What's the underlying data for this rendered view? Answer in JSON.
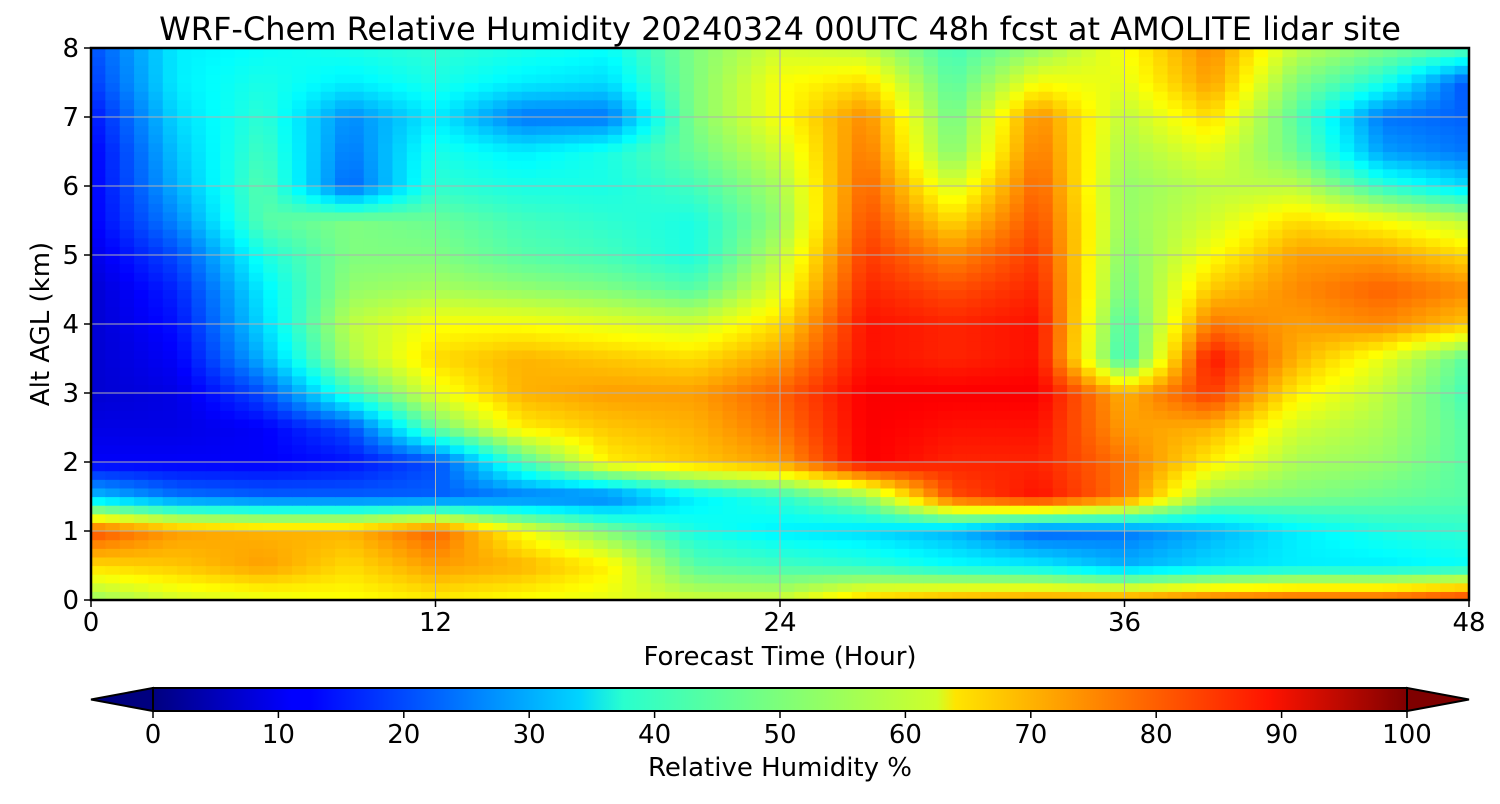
{
  "chart_data": {
    "type": "heatmap",
    "title": "WRF-Chem Relative Humidity 20240324 00UTC 48h fcst at AMOLITE lidar site",
    "xlabel": "Forecast Time (Hour)",
    "ylabel": "Alt AGL (km)",
    "xlim": [
      0,
      48
    ],
    "ylim": [
      0,
      8
    ],
    "xticks": [
      "0",
      "12",
      "24",
      "36",
      "48"
    ],
    "yticks": [
      "0",
      "1",
      "2",
      "3",
      "4",
      "5",
      "6",
      "7",
      "8"
    ],
    "grid": true,
    "x": [
      0,
      3,
      6,
      9,
      12,
      15,
      18,
      21,
      24,
      27,
      30,
      33,
      36,
      39,
      42,
      45,
      48
    ],
    "y": [
      0,
      0.5,
      1,
      1.5,
      2,
      2.5,
      3,
      3.5,
      4,
      4.5,
      5,
      5.5,
      6,
      6.5,
      7,
      7.5,
      8
    ],
    "z": [
      [
        52,
        58,
        60,
        62,
        64,
        62,
        60,
        58,
        58,
        68,
        72,
        74,
        74,
        78,
        80,
        80,
        84
      ],
      [
        66,
        68,
        72,
        66,
        72,
        70,
        64,
        46,
        44,
        42,
        38,
        36,
        30,
        34,
        36,
        36,
        38
      ],
      [
        80,
        72,
        70,
        70,
        78,
        62,
        50,
        40,
        36,
        34,
        30,
        22,
        24,
        30,
        36,
        40,
        42
      ],
      [
        32,
        24,
        22,
        22,
        22,
        24,
        24,
        36,
        42,
        52,
        80,
        86,
        76,
        52,
        50,
        48,
        46
      ],
      [
        12,
        12,
        12,
        14,
        20,
        44,
        64,
        68,
        72,
        88,
        84,
        84,
        76,
        64,
        54,
        52,
        46
      ],
      [
        10,
        10,
        12,
        20,
        48,
        64,
        68,
        70,
        76,
        88,
        86,
        86,
        72,
        70,
        58,
        54,
        46
      ],
      [
        8,
        10,
        20,
        42,
        60,
        70,
        72,
        72,
        78,
        88,
        88,
        88,
        70,
        82,
        64,
        56,
        44
      ],
      [
        8,
        12,
        30,
        54,
        66,
        70,
        68,
        66,
        72,
        86,
        84,
        86,
        42,
        86,
        70,
        60,
        46
      ],
      [
        8,
        14,
        34,
        56,
        62,
        62,
        60,
        58,
        66,
        86,
        84,
        86,
        44,
        76,
        72,
        74,
        68
      ],
      [
        8,
        16,
        36,
        52,
        54,
        52,
        50,
        46,
        60,
        84,
        80,
        84,
        48,
        68,
        74,
        78,
        74
      ],
      [
        10,
        20,
        40,
        50,
        50,
        46,
        44,
        40,
        56,
        82,
        74,
        82,
        50,
        62,
        72,
        72,
        66
      ],
      [
        12,
        26,
        46,
        50,
        48,
        44,
        42,
        40,
        52,
        80,
        66,
        80,
        52,
        58,
        66,
        62,
        56
      ],
      [
        12,
        30,
        46,
        22,
        42,
        40,
        40,
        44,
        54,
        78,
        58,
        78,
        52,
        56,
        56,
        42,
        34
      ],
      [
        12,
        32,
        44,
        24,
        40,
        36,
        40,
        48,
        58,
        76,
        50,
        76,
        54,
        60,
        48,
        28,
        24
      ],
      [
        14,
        34,
        42,
        26,
        36,
        24,
        24,
        50,
        62,
        74,
        48,
        74,
        56,
        66,
        46,
        24,
        22
      ],
      [
        18,
        36,
        40,
        36,
        40,
        36,
        34,
        50,
        62,
        66,
        46,
        62,
        60,
        72,
        50,
        40,
        20
      ],
      [
        20,
        36,
        38,
        40,
        42,
        40,
        38,
        50,
        58,
        56,
        44,
        52,
        62,
        74,
        56,
        50,
        46
      ]
    ],
    "colorbar": {
      "label": "Relative Humidity %",
      "min": 0,
      "max": 100,
      "ticks": [
        "0",
        "10",
        "20",
        "30",
        "40",
        "50",
        "60",
        "70",
        "80",
        "90",
        "100"
      ],
      "extend": "both",
      "colormap": "jet"
    }
  }
}
